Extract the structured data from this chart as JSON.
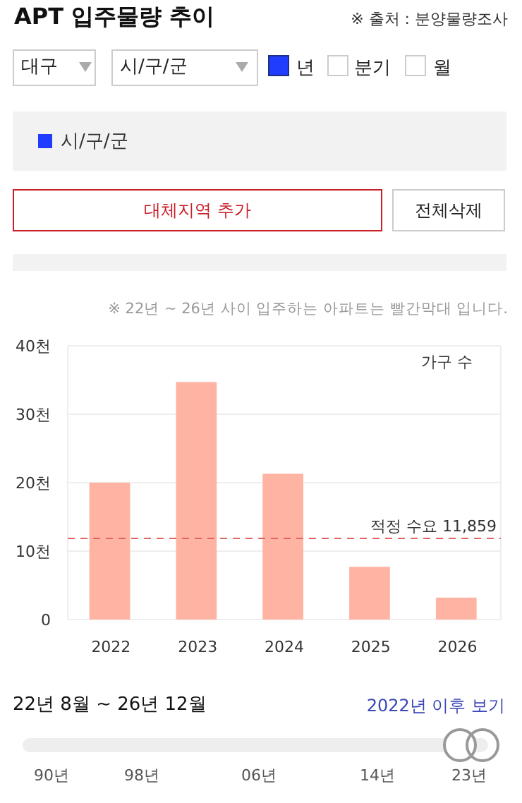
{
  "chart_data": {
    "type": "bar",
    "title": "APT 입주물량 추이",
    "ylabel": "가구 수",
    "categories": [
      "2022",
      "2023",
      "2024",
      "2025",
      "2026"
    ],
    "values": [
      20,
      34.7,
      21.3,
      7.7,
      3.2
    ],
    "color": "#ffb3a3",
    "ylim": [
      0,
      40
    ],
    "yticks": [
      0,
      {
        "value": 10,
        "label": "10천"
      },
      {
        "value": 20,
        "label": "20천"
      },
      {
        "value": 30,
        "label": "30천"
      },
      {
        "value": 40,
        "label": "40천"
      }
    ],
    "grid": "y",
    "ref_lines": [
      {
        "axis": "y",
        "value": 11.859,
        "label": "적정 수요 11,859",
        "color": "#e06666",
        "line_style": "dashed"
      }
    ],
    "annotations": [
      "※ 출처 : 분양물량조사",
      "대구",
      "시/구/군",
      "년",
      "분기",
      "월",
      "시/구/군",
      "대체지역 추가",
      "전체삭제",
      "※ 22년 ~ 26년 사이 입주하는 아파트는 빨간막대 입니다.",
      "22년 8월 ~ 26년 12월",
      "2022년 이후 보기",
      "90년",
      "98년",
      "06년",
      "14년",
      "23년"
    ]
  }
}
